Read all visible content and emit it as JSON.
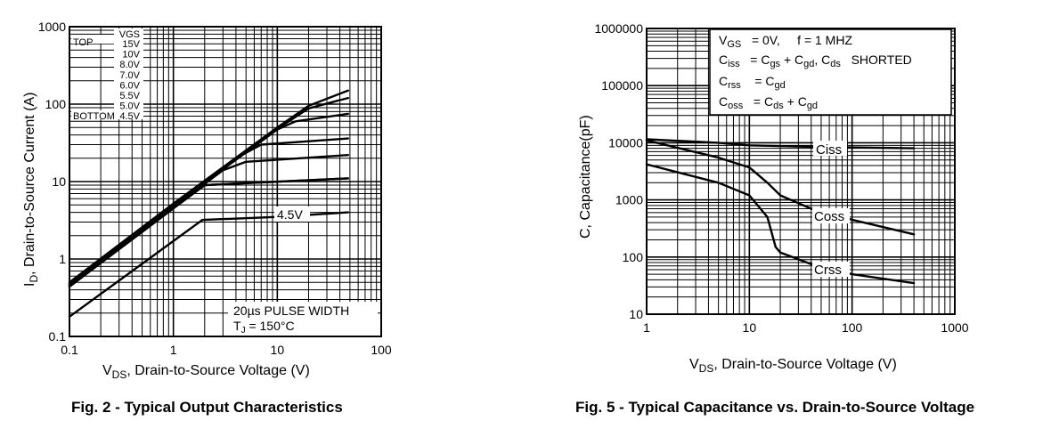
{
  "chart_data": [
    {
      "type": "line",
      "title": "",
      "caption": "Fig. 2 - Typical Output Characteristics",
      "xscale": "log",
      "yscale": "log",
      "xlim": [
        0.1,
        100
      ],
      "ylim": [
        0.1,
        1000
      ],
      "x_ticks": [
        "0.1",
        "1",
        "10",
        "100"
      ],
      "y_ticks": [
        "0.1",
        "1",
        "10",
        "100",
        "1000"
      ],
      "xlabel": {
        "pre": "V",
        "sub": "DS",
        "post": ", Drain-to-Source Voltage (V)"
      },
      "ylabel": {
        "pre": "I",
        "sub": "D",
        "post": ",  Drain-to-Source Current (A)"
      },
      "vgs_legend": {
        "header": "VGS",
        "top_label": "TOP",
        "bottom_label": "BOTTOM",
        "values": [
          "15V",
          "10V",
          "8.0V",
          "7.0V",
          "6.0V",
          "5.5V",
          "5.0V",
          "4.5V"
        ]
      },
      "curve_label": "4.5V",
      "note_line1": "20µs PULSE WIDTH",
      "note_line2": {
        "pre": "T",
        "sub": "J",
        "post": " = 150°C"
      },
      "series": [
        {
          "name": "15V",
          "x": [
            0.1,
            1,
            10,
            20,
            48
          ],
          "y": [
            0.5,
            5.2,
            50,
            95,
            150
          ]
        },
        {
          "name": "10V",
          "x": [
            0.1,
            1,
            10,
            20,
            48
          ],
          "y": [
            0.48,
            5.0,
            48,
            88,
            120
          ]
        },
        {
          "name": "8.0V",
          "x": [
            0.1,
            1,
            10,
            15,
            48
          ],
          "y": [
            0.47,
            4.9,
            47,
            60,
            75
          ]
        },
        {
          "name": "7.0V",
          "x": [
            0.1,
            1,
            4,
            7,
            48
          ],
          "y": [
            0.46,
            4.8,
            20,
            30,
            36
          ]
        },
        {
          "name": "6.0V",
          "x": [
            0.1,
            1,
            3,
            5,
            48
          ],
          "y": [
            0.45,
            4.7,
            14,
            18,
            22
          ]
        },
        {
          "name": "5.5V",
          "x": [
            0.1,
            1,
            2,
            48
          ],
          "y": [
            0.44,
            4.6,
            9.0,
            11
          ]
        },
        {
          "name": "5.0V",
          "x": [
            0.1,
            1,
            2,
            48
          ],
          "y": [
            0.44,
            4.5,
            9.0,
            11
          ]
        },
        {
          "name": "4.5V",
          "x": [
            0.1,
            1.9,
            10,
            48
          ],
          "y": [
            0.18,
            3.2,
            3.5,
            4.0
          ]
        }
      ]
    },
    {
      "type": "line",
      "title": "",
      "caption": "Fig. 5 - Typical Capacitance vs. Drain-to-Source Voltage",
      "xscale": "log",
      "yscale": "log",
      "xlim": [
        1,
        1000
      ],
      "ylim": [
        10,
        1000000
      ],
      "x_ticks": [
        "1",
        "10",
        "100",
        "1000"
      ],
      "y_ticks": [
        "10",
        "100",
        "1000",
        "10000",
        "100000",
        "1000000"
      ],
      "xlabel": {
        "pre": "V",
        "sub": "DS",
        "post": ", Drain-to-Source Voltage (V)"
      },
      "ylabel": "C, Capacitance(pF)",
      "legend": {
        "line1": [
          "V",
          "GS",
          "   = 0V,     f = 1 MHZ"
        ],
        "line2": [
          "C",
          "iss",
          "   = C",
          "gs",
          " + C",
          "gd",
          ", C",
          "ds",
          "   SHORTED"
        ],
        "line3": [
          "C",
          "rss",
          "    = C",
          "gd"
        ],
        "line4": [
          "C",
          "oss",
          "   = C",
          "ds",
          " + C",
          "gd"
        ]
      },
      "series": [
        {
          "name": "Ciss",
          "x": [
            1,
            5,
            10,
            40,
            400
          ],
          "y": [
            11500,
            10000,
            9000,
            8500,
            8000
          ]
        },
        {
          "name": "Coss",
          "x": [
            1,
            5,
            10,
            15,
            20,
            40,
            100,
            400
          ],
          "y": [
            11000,
            5500,
            3700,
            2000,
            1200,
            700,
            450,
            250
          ]
        },
        {
          "name": "Crss",
          "x": [
            1,
            5,
            10,
            15,
            18,
            20,
            40,
            100,
            400
          ],
          "y": [
            4200,
            2000,
            1200,
            500,
            150,
            120,
            75,
            50,
            35
          ]
        }
      ]
    }
  ]
}
